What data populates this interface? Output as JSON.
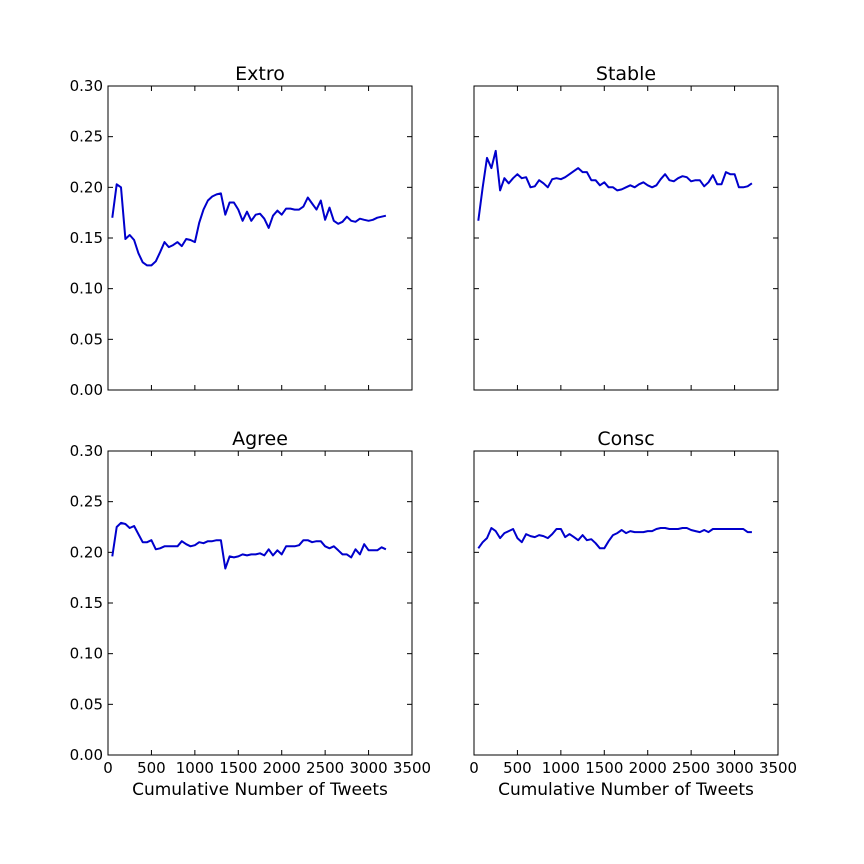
{
  "chart_data": [
    {
      "type": "line",
      "title": "Extro",
      "xlabel": "",
      "ylabel": "",
      "xlim": [
        0,
        3500
      ],
      "ylim": [
        0,
        0.3
      ],
      "yticks": [
        "0.00",
        "0.05",
        "0.10",
        "0.15",
        "0.20",
        "0.25",
        "0.30"
      ],
      "xticks": [],
      "color": "#0000cc",
      "x": [
        50,
        100,
        150,
        200,
        250,
        300,
        350,
        400,
        450,
        500,
        550,
        600,
        650,
        700,
        750,
        800,
        850,
        900,
        950,
        1000,
        1050,
        1100,
        1150,
        1200,
        1250,
        1300,
        1350,
        1400,
        1450,
        1500,
        1550,
        1600,
        1650,
        1700,
        1750,
        1800,
        1850,
        1900,
        1950,
        2000,
        2050,
        2100,
        2150,
        2200,
        2250,
        2300,
        2350,
        2400,
        2450,
        2500,
        2550,
        2600,
        2650,
        2700,
        2750,
        2800,
        2850,
        2900,
        2950,
        3000,
        3050,
        3100,
        3150,
        3200
      ],
      "y": [
        0.17,
        0.203,
        0.2,
        0.149,
        0.153,
        0.148,
        0.135,
        0.126,
        0.123,
        0.123,
        0.127,
        0.136,
        0.146,
        0.141,
        0.143,
        0.146,
        0.142,
        0.149,
        0.148,
        0.146,
        0.165,
        0.178,
        0.187,
        0.191,
        0.193,
        0.194,
        0.173,
        0.185,
        0.185,
        0.178,
        0.167,
        0.176,
        0.167,
        0.173,
        0.174,
        0.169,
        0.16,
        0.172,
        0.177,
        0.173,
        0.179,
        0.179,
        0.178,
        0.178,
        0.181,
        0.19,
        0.184,
        0.178,
        0.187,
        0.168,
        0.18,
        0.167,
        0.164,
        0.166,
        0.171,
        0.167,
        0.166,
        0.169,
        0.168,
        0.167,
        0.168,
        0.17,
        0.171,
        0.172
      ]
    },
    {
      "type": "line",
      "title": "Stable",
      "xlabel": "",
      "ylabel": "",
      "xlim": [
        0,
        3500
      ],
      "ylim": [
        0,
        0.3
      ],
      "yticks": [],
      "xticks": [],
      "color": "#0000cc",
      "x": [
        50,
        100,
        150,
        200,
        250,
        300,
        350,
        400,
        450,
        500,
        550,
        600,
        650,
        700,
        750,
        800,
        850,
        900,
        950,
        1000,
        1050,
        1100,
        1150,
        1200,
        1250,
        1300,
        1350,
        1400,
        1450,
        1500,
        1550,
        1600,
        1650,
        1700,
        1750,
        1800,
        1850,
        1900,
        1950,
        2000,
        2050,
        2100,
        2150,
        2200,
        2250,
        2300,
        2350,
        2400,
        2450,
        2500,
        2550,
        2600,
        2650,
        2700,
        2750,
        2800,
        2850,
        2900,
        2950,
        3000,
        3050,
        3100,
        3150,
        3200
      ],
      "y": [
        0.167,
        0.2,
        0.229,
        0.219,
        0.236,
        0.197,
        0.209,
        0.204,
        0.209,
        0.213,
        0.209,
        0.21,
        0.2,
        0.201,
        0.207,
        0.204,
        0.2,
        0.208,
        0.209,
        0.208,
        0.21,
        0.213,
        0.216,
        0.219,
        0.215,
        0.215,
        0.207,
        0.207,
        0.202,
        0.205,
        0.2,
        0.2,
        0.197,
        0.198,
        0.2,
        0.202,
        0.2,
        0.203,
        0.205,
        0.202,
        0.2,
        0.202,
        0.208,
        0.213,
        0.207,
        0.206,
        0.209,
        0.211,
        0.21,
        0.206,
        0.207,
        0.207,
        0.201,
        0.205,
        0.212,
        0.203,
        0.203,
        0.215,
        0.213,
        0.213,
        0.2,
        0.2,
        0.201,
        0.204
      ]
    },
    {
      "type": "line",
      "title": "Agree",
      "xlabel": "Cumulative Number of Tweets",
      "ylabel": "",
      "xlim": [
        0,
        3500
      ],
      "ylim": [
        0,
        0.3
      ],
      "yticks": [
        "0.00",
        "0.05",
        "0.10",
        "0.15",
        "0.20",
        "0.25",
        "0.30"
      ],
      "xticks": [
        "0",
        "500",
        "1000",
        "1500",
        "2000",
        "2500",
        "3000",
        "3500"
      ],
      "color": "#0000cc",
      "x": [
        50,
        100,
        150,
        200,
        250,
        300,
        350,
        400,
        450,
        500,
        550,
        600,
        650,
        700,
        750,
        800,
        850,
        900,
        950,
        1000,
        1050,
        1100,
        1150,
        1200,
        1250,
        1300,
        1350,
        1400,
        1450,
        1500,
        1550,
        1600,
        1650,
        1700,
        1750,
        1800,
        1850,
        1900,
        1950,
        2000,
        2050,
        2100,
        2150,
        2200,
        2250,
        2300,
        2350,
        2400,
        2450,
        2500,
        2550,
        2600,
        2650,
        2700,
        2750,
        2800,
        2850,
        2900,
        2950,
        3000,
        3050,
        3100,
        3150,
        3200
      ],
      "y": [
        0.196,
        0.225,
        0.229,
        0.228,
        0.224,
        0.226,
        0.218,
        0.21,
        0.21,
        0.212,
        0.203,
        0.204,
        0.206,
        0.206,
        0.206,
        0.206,
        0.211,
        0.208,
        0.206,
        0.207,
        0.21,
        0.209,
        0.211,
        0.211,
        0.212,
        0.212,
        0.184,
        0.196,
        0.195,
        0.196,
        0.198,
        0.197,
        0.198,
        0.198,
        0.199,
        0.197,
        0.203,
        0.197,
        0.202,
        0.198,
        0.206,
        0.206,
        0.206,
        0.207,
        0.212,
        0.212,
        0.21,
        0.211,
        0.211,
        0.206,
        0.204,
        0.206,
        0.202,
        0.198,
        0.198,
        0.195,
        0.203,
        0.198,
        0.208,
        0.202,
        0.202,
        0.202,
        0.205,
        0.203
      ]
    },
    {
      "type": "line",
      "title": "Consc",
      "xlabel": "Cumulative Number of Tweets",
      "ylabel": "",
      "xlim": [
        0,
        3500
      ],
      "ylim": [
        0,
        0.3
      ],
      "yticks": [],
      "xticks": [
        "0",
        "500",
        "1000",
        "1500",
        "2000",
        "2500",
        "3000",
        "3500"
      ],
      "color": "#0000cc",
      "x": [
        50,
        100,
        150,
        200,
        250,
        300,
        350,
        400,
        450,
        500,
        550,
        600,
        650,
        700,
        750,
        800,
        850,
        900,
        950,
        1000,
        1050,
        1100,
        1150,
        1200,
        1250,
        1300,
        1350,
        1400,
        1450,
        1500,
        1550,
        1600,
        1650,
        1700,
        1750,
        1800,
        1850,
        1900,
        1950,
        2000,
        2050,
        2100,
        2150,
        2200,
        2250,
        2300,
        2350,
        2400,
        2450,
        2500,
        2550,
        2600,
        2650,
        2700,
        2750,
        2800,
        2850,
        2900,
        2950,
        3000,
        3050,
        3100,
        3150,
        3200
      ],
      "y": [
        0.204,
        0.21,
        0.214,
        0.224,
        0.221,
        0.214,
        0.219,
        0.221,
        0.223,
        0.214,
        0.21,
        0.218,
        0.216,
        0.215,
        0.217,
        0.216,
        0.214,
        0.218,
        0.223,
        0.223,
        0.215,
        0.218,
        0.215,
        0.212,
        0.217,
        0.212,
        0.213,
        0.209,
        0.204,
        0.204,
        0.211,
        0.217,
        0.219,
        0.222,
        0.219,
        0.221,
        0.22,
        0.22,
        0.22,
        0.221,
        0.221,
        0.223,
        0.224,
        0.224,
        0.223,
        0.223,
        0.223,
        0.224,
        0.224,
        0.222,
        0.221,
        0.22,
        0.222,
        0.22,
        0.223,
        0.223,
        0.223,
        0.223,
        0.223,
        0.223,
        0.223,
        0.223,
        0.22,
        0.22
      ]
    }
  ]
}
